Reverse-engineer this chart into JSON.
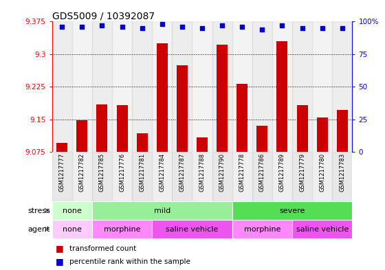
{
  "title": "GDS5009 / 10392087",
  "samples": [
    "GSM1217777",
    "GSM1217782",
    "GSM1217785",
    "GSM1217776",
    "GSM1217781",
    "GSM1217784",
    "GSM1217787",
    "GSM1217788",
    "GSM1217790",
    "GSM1217778",
    "GSM1217786",
    "GSM1217789",
    "GSM1217779",
    "GSM1217780",
    "GSM1217783"
  ],
  "bar_values": [
    9.096,
    9.148,
    9.185,
    9.182,
    9.118,
    9.325,
    9.275,
    9.108,
    9.322,
    9.232,
    9.135,
    9.33,
    9.182,
    9.155,
    9.172
  ],
  "percentile_values": [
    96,
    96,
    97,
    96,
    95,
    98,
    96,
    95,
    97,
    96,
    94,
    97,
    95,
    95,
    95
  ],
  "bar_color": "#cc0000",
  "percentile_color": "#0000cc",
  "ymin": 9.075,
  "ymax": 9.375,
  "yticks": [
    9.075,
    9.15,
    9.225,
    9.3,
    9.375
  ],
  "ytick_labels": [
    "9.075",
    "9.15",
    "9.225",
    "9.3",
    "9.375"
  ],
  "right_yticks": [
    0,
    25,
    50,
    75,
    100
  ],
  "right_ytick_labels": [
    "0",
    "25",
    "50",
    "75",
    "100%"
  ],
  "grid_yticks": [
    9.15,
    9.225,
    9.3
  ],
  "stress_groups": [
    {
      "label": "none",
      "start": 0,
      "end": 2,
      "color": "#ccffcc"
    },
    {
      "label": "mild",
      "start": 2,
      "end": 9,
      "color": "#99ee99"
    },
    {
      "label": "severe",
      "start": 9,
      "end": 15,
      "color": "#55dd55"
    }
  ],
  "agent_groups": [
    {
      "label": "none",
      "start": 0,
      "end": 2,
      "color": "#ffccff"
    },
    {
      "label": "morphine",
      "start": 2,
      "end": 5,
      "color": "#ff88ff"
    },
    {
      "label": "saline vehicle",
      "start": 5,
      "end": 9,
      "color": "#ee55ee"
    },
    {
      "label": "morphine",
      "start": 9,
      "end": 12,
      "color": "#ff88ff"
    },
    {
      "label": "saline vehicle",
      "start": 12,
      "end": 15,
      "color": "#ee55ee"
    }
  ],
  "legend_red_label": "transformed count",
  "legend_blue_label": "percentile rank within the sample",
  "stress_label": "stress",
  "agent_label": "agent",
  "col_bg_even": "#cccccc",
  "col_bg_odd": "#dddddd"
}
